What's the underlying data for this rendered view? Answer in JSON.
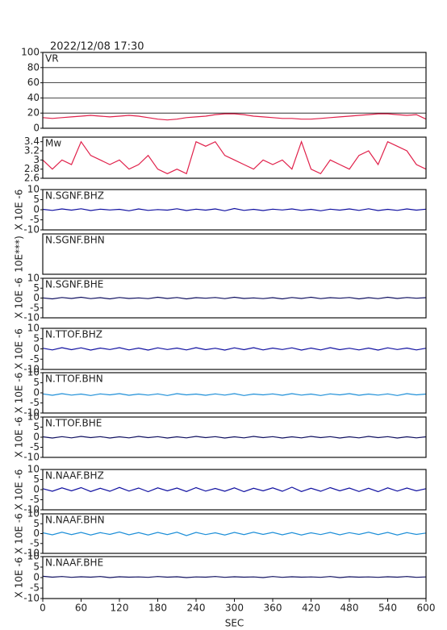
{
  "title": "2022/12/08 17:30",
  "chart_data": [
    {
      "type": "line",
      "title": "VR",
      "xlim": [
        0,
        600
      ],
      "ylim": [
        0,
        100
      ],
      "yticks": [
        0,
        20,
        40,
        60,
        80,
        100
      ],
      "grid": true,
      "x": [
        0,
        15,
        30,
        45,
        60,
        75,
        90,
        105,
        120,
        135,
        150,
        165,
        180,
        195,
        210,
        225,
        240,
        255,
        270,
        285,
        300,
        315,
        330,
        345,
        360,
        375,
        390,
        405,
        420,
        435,
        450,
        465,
        480,
        495,
        510,
        525,
        540,
        555,
        570,
        585,
        600
      ],
      "series": [
        {
          "color": "#e0204a",
          "values": [
            14,
            13,
            14,
            15,
            16,
            17,
            16,
            15,
            16,
            17,
            16,
            14,
            12,
            11,
            12,
            14,
            15,
            16,
            18,
            19,
            19,
            18,
            16,
            15,
            14,
            13,
            13,
            12,
            12,
            13,
            14,
            15,
            16,
            17,
            18,
            19,
            19,
            18,
            17,
            18,
            12
          ]
        }
      ]
    },
    {
      "type": "line",
      "title": "Mw",
      "xlim": [
        0,
        600
      ],
      "ylim": [
        2.6,
        3.5
      ],
      "yticks": [
        2.6,
        2.8,
        3.0,
        3.2,
        3.4
      ],
      "grid": false,
      "x": [
        0,
        15,
        30,
        45,
        60,
        75,
        90,
        105,
        120,
        135,
        150,
        165,
        180,
        195,
        210,
        225,
        240,
        255,
        270,
        285,
        300,
        315,
        330,
        345,
        360,
        375,
        390,
        405,
        420,
        435,
        450,
        465,
        480,
        495,
        510,
        525,
        540,
        555,
        570,
        585,
        600
      ],
      "series": [
        {
          "color": "#e0204a",
          "values": [
            3.0,
            2.8,
            3.0,
            2.9,
            3.4,
            3.1,
            3.0,
            2.9,
            3.0,
            2.8,
            2.9,
            3.1,
            2.8,
            2.7,
            2.8,
            2.7,
            3.4,
            3.3,
            3.4,
            3.1,
            3.0,
            2.9,
            2.8,
            3.0,
            2.9,
            3.0,
            2.8,
            3.4,
            2.8,
            2.7,
            3.0,
            2.9,
            2.8,
            3.1,
            3.2,
            2.9,
            3.4,
            3.3,
            3.2,
            2.9,
            2.8
          ]
        }
      ]
    },
    {
      "type": "line",
      "title": "N.SGNF.BHZ",
      "ylabel": "X 10E -6",
      "xlim": [
        0,
        600
      ],
      "ylim": [
        -10,
        10
      ],
      "yticks": [
        -10,
        -5,
        0,
        5,
        10
      ],
      "x": [
        0,
        15,
        30,
        45,
        60,
        75,
        90,
        105,
        120,
        135,
        150,
        165,
        180,
        195,
        210,
        225,
        240,
        255,
        270,
        285,
        300,
        315,
        330,
        345,
        360,
        375,
        390,
        405,
        420,
        435,
        450,
        465,
        480,
        495,
        510,
        525,
        540,
        555,
        570,
        585,
        600
      ],
      "series": [
        {
          "color": "#1010a0",
          "values": [
            0.2,
            -0.3,
            0.4,
            -0.2,
            0.5,
            -0.4,
            0.3,
            -0.1,
            0.2,
            -0.5,
            0.4,
            -0.3,
            0.1,
            -0.2,
            0.5,
            -0.4,
            0.3,
            -0.2,
            0.4,
            -0.5,
            0.6,
            -0.3,
            0.2,
            -0.4,
            0.3,
            -0.1,
            0.4,
            -0.3,
            0.2,
            -0.5,
            0.3,
            -0.2,
            0.4,
            -0.3,
            0.5,
            -0.4,
            0.2,
            -0.3,
            0.4,
            -0.2,
            0.3
          ]
        }
      ]
    },
    {
      "type": "line",
      "title": "N.SGNF.BHN",
      "ylabel": "10E***)",
      "xlim": [
        0,
        600
      ]
    },
    {
      "type": "line",
      "title": "N.SGNF.BHE",
      "ylabel": "X 10E -6",
      "xlim": [
        0,
        600
      ],
      "ylim": [
        -10,
        10
      ],
      "yticks": [
        -10,
        -5,
        0,
        5,
        10
      ],
      "x": [
        0,
        15,
        30,
        45,
        60,
        75,
        90,
        105,
        120,
        135,
        150,
        165,
        180,
        195,
        210,
        225,
        240,
        255,
        270,
        285,
        300,
        315,
        330,
        345,
        360,
        375,
        390,
        405,
        420,
        435,
        450,
        465,
        480,
        495,
        510,
        525,
        540,
        555,
        570,
        585,
        600
      ],
      "series": [
        {
          "color": "#101060",
          "values": [
            0.1,
            -0.4,
            0.3,
            -0.2,
            0.4,
            -0.3,
            0.2,
            -0.4,
            0.3,
            -0.2,
            0.1,
            -0.3,
            0.4,
            -0.2,
            0.3,
            -0.4,
            0.2,
            -0.1,
            0.3,
            -0.3,
            0.4,
            -0.2,
            0.1,
            -0.3,
            0.2,
            -0.4,
            0.3,
            -0.2,
            0.4,
            -0.3,
            0.2,
            -0.1,
            0.3,
            -0.4,
            0.2,
            -0.3,
            0.4,
            -0.2,
            0.3,
            -0.1,
            0.2
          ]
        }
      ]
    },
    {
      "type": "line",
      "title": "N.TTOF.BHZ",
      "ylabel": "X 10E -6",
      "xlim": [
        0,
        600
      ],
      "ylim": [
        -10,
        10
      ],
      "yticks": [
        -10,
        -5,
        0,
        5,
        10
      ],
      "x": [
        0,
        15,
        30,
        45,
        60,
        75,
        90,
        105,
        120,
        135,
        150,
        165,
        180,
        195,
        210,
        225,
        240,
        255,
        270,
        285,
        300,
        315,
        330,
        345,
        360,
        375,
        390,
        405,
        420,
        435,
        450,
        465,
        480,
        495,
        510,
        525,
        540,
        555,
        570,
        585,
        600
      ],
      "series": [
        {
          "color": "#1010a0",
          "values": [
            0.3,
            -0.5,
            0.6,
            -0.4,
            0.5,
            -0.6,
            0.4,
            -0.3,
            0.6,
            -0.5,
            0.4,
            -0.6,
            0.5,
            -0.3,
            0.4,
            -0.5,
            0.6,
            -0.4,
            0.3,
            -0.6,
            0.5,
            -0.4,
            0.6,
            -0.5,
            0.4,
            -0.3,
            0.5,
            -0.6,
            0.4,
            -0.5,
            0.6,
            -0.4,
            0.3,
            -0.5,
            0.4,
            -0.6,
            0.5,
            -0.3,
            0.4,
            -0.5,
            0.3
          ]
        }
      ]
    },
    {
      "type": "line",
      "title": "N.TTOF.BHN",
      "ylabel": "X 10E -6",
      "xlim": [
        0,
        600
      ],
      "ylim": [
        -10,
        10
      ],
      "yticks": [
        -10,
        -5,
        0,
        5,
        10
      ],
      "x": [
        0,
        15,
        30,
        45,
        60,
        75,
        90,
        105,
        120,
        135,
        150,
        165,
        180,
        195,
        210,
        225,
        240,
        255,
        270,
        285,
        300,
        315,
        330,
        345,
        360,
        375,
        390,
        405,
        420,
        435,
        450,
        465,
        480,
        495,
        510,
        525,
        540,
        555,
        570,
        585,
        600
      ],
      "series": [
        {
          "color": "#1e8fd8",
          "values": [
            -0.5,
            -1.2,
            -0.4,
            -1.1,
            -0.6,
            -1.3,
            -0.5,
            -1.0,
            -0.4,
            -1.2,
            -0.6,
            -1.1,
            -0.5,
            -1.3,
            -0.4,
            -1.0,
            -0.6,
            -1.2,
            -0.5,
            -1.1,
            -0.4,
            -1.3,
            -0.6,
            -1.0,
            -0.5,
            -1.2,
            -0.4,
            -1.1,
            -0.6,
            -1.3,
            -0.5,
            -1.0,
            -0.4,
            -1.2,
            -0.6,
            -1.1,
            -0.5,
            -1.3,
            -0.4,
            -1.0,
            -0.6
          ]
        }
      ]
    },
    {
      "type": "line",
      "title": "N.TTOF.BHE",
      "ylabel": "X 10E -6",
      "xlim": [
        0,
        600
      ],
      "ylim": [
        -10,
        10
      ],
      "yticks": [
        -10,
        -5,
        0,
        5,
        10
      ],
      "x": [
        0,
        15,
        30,
        45,
        60,
        75,
        90,
        105,
        120,
        135,
        150,
        165,
        180,
        195,
        210,
        225,
        240,
        255,
        270,
        285,
        300,
        315,
        330,
        345,
        360,
        375,
        390,
        405,
        420,
        435,
        450,
        465,
        480,
        495,
        510,
        525,
        540,
        555,
        570,
        585,
        600
      ],
      "series": [
        {
          "color": "#101060",
          "values": [
            0.2,
            -0.4,
            0.3,
            -0.3,
            0.4,
            -0.2,
            0.3,
            -0.4,
            0.2,
            -0.3,
            0.4,
            -0.2,
            0.3,
            -0.4,
            0.2,
            -0.3,
            0.4,
            -0.2,
            0.3,
            -0.4,
            0.2,
            -0.3,
            0.4,
            -0.2,
            0.3,
            -0.4,
            0.2,
            -0.3,
            0.4,
            -0.2,
            0.3,
            -0.4,
            0.2,
            -0.3,
            0.4,
            -0.2,
            0.3,
            -0.4,
            0.2,
            -0.3,
            0.2
          ]
        }
      ]
    },
    {
      "type": "line",
      "title": "N.NAAF.BHZ",
      "ylabel": "X 10E -6",
      "xlim": [
        0,
        600
      ],
      "ylim": [
        -10,
        10
      ],
      "yticks": [
        -10,
        -5,
        0,
        5,
        10
      ],
      "x": [
        0,
        15,
        30,
        45,
        60,
        75,
        90,
        105,
        120,
        135,
        150,
        165,
        180,
        195,
        210,
        225,
        240,
        255,
        270,
        285,
        300,
        315,
        330,
        345,
        360,
        375,
        390,
        405,
        420,
        435,
        450,
        465,
        480,
        495,
        510,
        525,
        540,
        555,
        570,
        585,
        600
      ],
      "series": [
        {
          "color": "#1010a0",
          "values": [
            0.5,
            -0.8,
            0.9,
            -0.6,
            1.0,
            -0.9,
            0.7,
            -0.8,
            1.1,
            -0.7,
            0.8,
            -1.0,
            0.9,
            -0.6,
            0.8,
            -0.9,
            1.0,
            -0.7,
            0.6,
            -0.8,
            0.9,
            -1.0,
            0.7,
            -0.6,
            0.9,
            -0.8,
            1.2,
            -0.9,
            0.7,
            -0.8,
            1.0,
            -0.6,
            0.8,
            -0.9,
            0.7,
            -1.0,
            0.9,
            -0.7,
            0.8,
            -0.6,
            0.5
          ]
        }
      ]
    },
    {
      "type": "line",
      "title": "N.NAAF.BHN",
      "ylabel": "X 10E -6",
      "xlim": [
        0,
        600
      ],
      "ylim": [
        -10,
        10
      ],
      "yticks": [
        -10,
        -5,
        0,
        5,
        10
      ],
      "x": [
        0,
        15,
        30,
        45,
        60,
        75,
        90,
        105,
        120,
        135,
        150,
        165,
        180,
        195,
        210,
        225,
        240,
        255,
        270,
        285,
        300,
        315,
        330,
        345,
        360,
        375,
        390,
        405,
        420,
        435,
        450,
        465,
        480,
        495,
        510,
        525,
        540,
        555,
        570,
        585,
        600
      ],
      "series": [
        {
          "color": "#1e8fd8",
          "values": [
            0.4,
            -0.6,
            0.7,
            -0.5,
            0.6,
            -0.7,
            0.5,
            -0.4,
            0.8,
            -0.6,
            0.5,
            -0.7,
            0.6,
            -0.5,
            0.7,
            -1.0,
            0.6,
            -0.5,
            0.4,
            -0.7,
            0.6,
            -0.5,
            0.7,
            -0.4,
            0.6,
            -0.6,
            0.5,
            -0.7,
            0.4,
            -0.5,
            0.6,
            -0.6,
            0.5,
            -0.4,
            0.7,
            -0.5,
            0.6,
            -0.7,
            0.5,
            -0.4,
            0.3
          ]
        }
      ]
    },
    {
      "type": "line",
      "title": "N.NAAF.BHE",
      "ylabel": "X 10E -6",
      "xlabel": "SEC",
      "xlim": [
        0,
        600
      ],
      "ylim": [
        -10,
        10
      ],
      "yticks": [
        -10,
        -5,
        0,
        5,
        10
      ],
      "xticks": [
        0,
        60,
        120,
        180,
        240,
        300,
        360,
        420,
        480,
        540,
        600
      ],
      "x": [
        0,
        15,
        30,
        45,
        60,
        75,
        90,
        105,
        120,
        135,
        150,
        165,
        180,
        195,
        210,
        225,
        240,
        255,
        270,
        285,
        300,
        315,
        330,
        345,
        360,
        375,
        390,
        405,
        420,
        435,
        450,
        465,
        480,
        495,
        510,
        525,
        540,
        555,
        570,
        585,
        600
      ],
      "series": [
        {
          "color": "#101060",
          "values": [
            0.6,
            0.2,
            0.5,
            0.1,
            0.4,
            0.2,
            0.5,
            0.0,
            0.4,
            0.2,
            0.3,
            0.1,
            0.5,
            0.2,
            0.4,
            0.0,
            0.3,
            0.2,
            0.5,
            0.1,
            0.4,
            0.2,
            0.3,
            0.0,
            0.5,
            0.1,
            0.4,
            0.2,
            0.3,
            0.1,
            0.5,
            0.0,
            0.4,
            0.2,
            0.3,
            0.1,
            0.4,
            0.2,
            0.5,
            0.1,
            0.3
          ]
        }
      ]
    }
  ]
}
